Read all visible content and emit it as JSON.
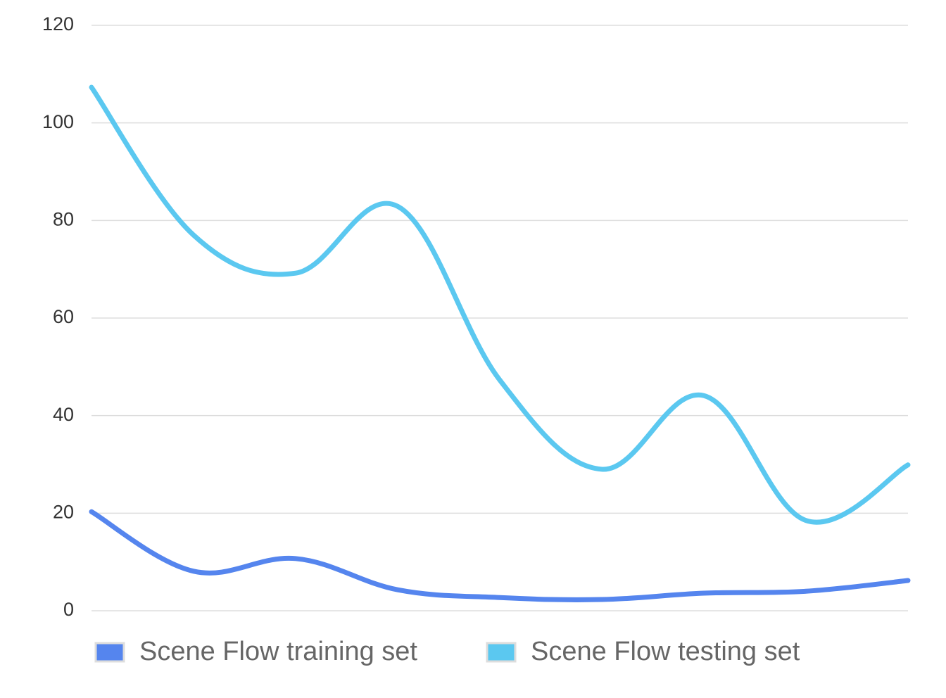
{
  "chart_data": {
    "type": "line",
    "categories": [
      null,
      null,
      null,
      null,
      null,
      null,
      null,
      null,
      null
    ],
    "series": [
      {
        "name": "Scene Flow training set",
        "color": "#5585ee",
        "values": [
          20.3,
          8.1,
          10.7,
          4.3,
          2.7,
          2.3,
          3.6,
          4.0,
          6.2
        ]
      },
      {
        "name": "Scene Flow testing set",
        "color": "#5bc8f0",
        "values": [
          107.3,
          77,
          69.2,
          82.9,
          47.3,
          29,
          44.1,
          18.5,
          29.9
        ]
      }
    ],
    "ylim": [
      0,
      120
    ],
    "yticks": [
      0,
      20,
      40,
      60,
      80,
      100,
      120
    ],
    "grid": true
  }
}
